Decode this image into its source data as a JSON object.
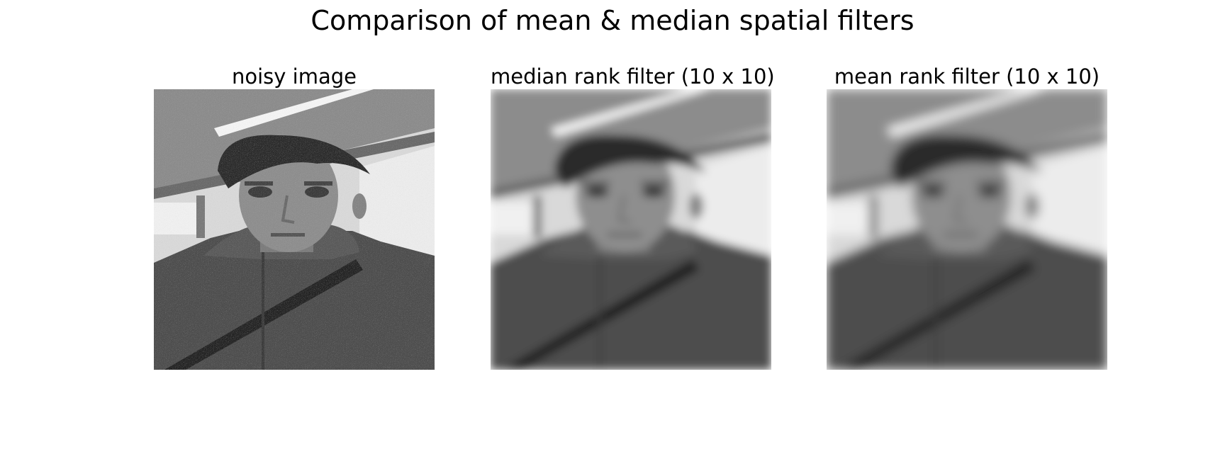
{
  "figure": {
    "title": "Comparison of mean & median spatial filters",
    "panels": [
      {
        "title": "noisy image",
        "image": "portrait-noisy-grayscale"
      },
      {
        "title": "median rank filter (10 x 10)",
        "image": "portrait-median-filtered"
      },
      {
        "title": "mean rank filter (10 x 10)",
        "image": "portrait-mean-filtered"
      }
    ]
  }
}
